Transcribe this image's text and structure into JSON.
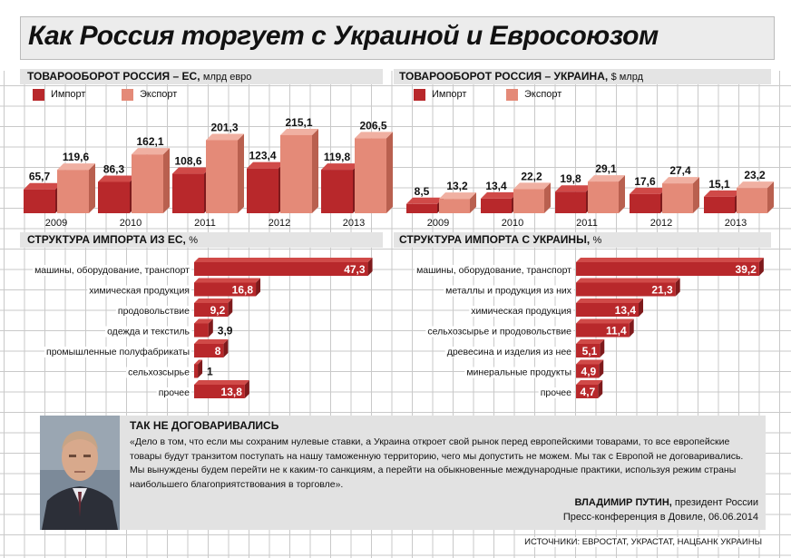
{
  "title": "Как Россия торгует с Украиной и Евросоюзом",
  "legend": {
    "import": "Импорт",
    "export": "Экспорт"
  },
  "chart_data": [
    {
      "type": "bar",
      "title": "ТОВАРООБОРОТ РОССИЯ – ЕС,",
      "unit": "млрд евро",
      "categories": [
        "2009",
        "2010",
        "2011",
        "2012",
        "2013"
      ],
      "series": [
        {
          "name": "Импорт",
          "values": [
            65.7,
            86.3,
            108.6,
            123.4,
            119.8
          ],
          "labels": [
            "65,7",
            "86,3",
            "108,6",
            "123,4",
            "119,8"
          ],
          "color": "#b8282b"
        },
        {
          "name": "Экспорт",
          "values": [
            119.6,
            162.1,
            201.3,
            215.1,
            206.5
          ],
          "labels": [
            "119,6",
            "162,1",
            "201,3",
            "215,1",
            "206,5"
          ],
          "color": "#e48a78"
        }
      ]
    },
    {
      "type": "bar",
      "title": "ТОВАРООБОРОТ РОССИЯ – УКРАИНА,",
      "unit": "$ млрд",
      "categories": [
        "2009",
        "2010",
        "2011",
        "2012",
        "2013"
      ],
      "series": [
        {
          "name": "Импорт",
          "values": [
            8.5,
            13.4,
            19.8,
            17.6,
            15.1
          ],
          "labels": [
            "8,5",
            "13,4",
            "19,8",
            "17,6",
            "15,1"
          ],
          "color": "#b8282b"
        },
        {
          "name": "Экспорт",
          "values": [
            13.2,
            22.2,
            29.1,
            27.4,
            23.2
          ],
          "labels": [
            "13,2",
            "22,2",
            "29,1",
            "27,4",
            "23,2"
          ],
          "color": "#e48a78"
        }
      ]
    },
    {
      "type": "bar",
      "orientation": "horizontal",
      "title": "СТРУКТУРА ИМПОРТА ИЗ ЕС,",
      "unit": "%",
      "categories": [
        "машины, оборудование, транспорт",
        "химическая продукция",
        "продовольствие",
        "одежда и текстиль",
        "промышленные полуфабрикаты",
        "сельхозсырье",
        "прочее"
      ],
      "values": [
        47.3,
        16.8,
        9.2,
        3.9,
        8,
        1,
        13.8
      ],
      "labels": [
        "47,3",
        "16,8",
        "9,2",
        "3,9",
        "8",
        "1",
        "13,8"
      ]
    },
    {
      "type": "bar",
      "orientation": "horizontal",
      "title": "СТРУКТУРА ИМПОРТА С УКРАИНЫ,",
      "unit": "%",
      "categories": [
        "машины, оборудование, транспорт",
        "металлы и продукция из них",
        "химическая продукция",
        "сельхозсырье и продовольствие",
        "древесина и изделия из нее",
        "минеральные продукты",
        "прочее"
      ],
      "values": [
        39.2,
        21.3,
        13.4,
        11.4,
        5.1,
        4.9,
        4.7
      ],
      "labels": [
        "39,2",
        "21,3",
        "13,4",
        "11,4",
        "5,1",
        "4,9",
        "4,7"
      ]
    }
  ],
  "quote": {
    "heading": "ТАК НЕ ДОГОВАРИВАЛИСЬ",
    "text": "«Дело в том, что если мы сохраним нулевые ставки, а Украина откроет свой рынок перед европейскими товарами, то все европейские товары будут транзитом поступать на нашу таможенную территорию, чего мы допустить не можем. Мы так с Европой не договаривались. Мы вынуждены будем перейти не к каким-то санкциям, а перейти на обыкновенные международные практики, используя режим страны наибольшего благоприятствования в торговле».",
    "author": "ВЛАДИМИР ПУТИН,",
    "author_role": "президент России",
    "event": "Пресс-конференция в Довиле, 06.06.2014"
  },
  "sources": "ИСТОЧНИКИ: ЕВРОСТАТ, УКРАСТАТ, НАЦБАНК УКРАИНЫ"
}
